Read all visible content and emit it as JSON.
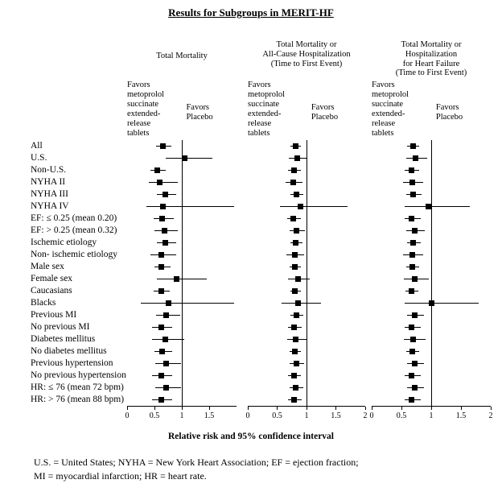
{
  "footnote": "U.S. = United States; NYHA = New York Heart Association; EF = ejection fraction;\nMI = myocardial infarction; HR = heart rate.",
  "chart_data": {
    "type": "forest",
    "title": "Results for Subgroups in MERIT-HF",
    "xlabel": "Relative risk and 95% confidence interval",
    "xlim": [
      0,
      2
    ],
    "reference_line": 1,
    "marker_color": "#000000",
    "grid": false,
    "categories": [
      "All",
      "U.S.",
      "Non-U.S.",
      "NYHA II",
      "NYHA III",
      "NYHA IV",
      "EF: ≤ 0.25 (mean 0.20)",
      "EF: > 0.25 (mean 0.32)",
      "Ischemic etiology",
      "Non- ischemic etiology",
      "Male sex",
      "Female sex",
      "Caucasians",
      "Blacks",
      "Previous MI",
      "No previous MI",
      "Diabetes mellitus",
      "No diabetes mellitus",
      "Previous hypertension",
      "No previous hypertension",
      "HR: ≤ 76 (mean 72 bpm)",
      "HR: > 76 (mean 88 bpm)"
    ],
    "panels": [
      {
        "title": "Total Mortality",
        "favors_left": "Favors\nmetoprolol\nsuccinate\nextended-\nrelease\ntablets",
        "favors_right": "Favors\nPlacebo",
        "xticks": [
          0,
          0.5,
          1,
          1.5
        ],
        "points": [
          {
            "est": 0.66,
            "lo": 0.53,
            "hi": 0.81
          },
          {
            "est": 1.05,
            "lo": 0.71,
            "hi": 1.56
          },
          {
            "est": 0.55,
            "lo": 0.43,
            "hi": 0.7
          },
          {
            "est": 0.6,
            "lo": 0.4,
            "hi": 0.92
          },
          {
            "est": 0.7,
            "lo": 0.55,
            "hi": 0.9
          },
          {
            "est": 0.65,
            "lo": 0.35,
            "hi": 1.95
          },
          {
            "est": 0.64,
            "lo": 0.48,
            "hi": 0.85
          },
          {
            "est": 0.68,
            "lo": 0.5,
            "hi": 0.92
          },
          {
            "est": 0.7,
            "lo": 0.54,
            "hi": 0.9
          },
          {
            "est": 0.62,
            "lo": 0.42,
            "hi": 0.9
          },
          {
            "est": 0.63,
            "lo": 0.5,
            "hi": 0.8
          },
          {
            "est": 0.9,
            "lo": 0.55,
            "hi": 1.45
          },
          {
            "est": 0.62,
            "lo": 0.49,
            "hi": 0.78
          },
          {
            "est": 0.75,
            "lo": 0.25,
            "hi": 1.95
          },
          {
            "est": 0.72,
            "lo": 0.53,
            "hi": 0.97
          },
          {
            "est": 0.62,
            "lo": 0.46,
            "hi": 0.83
          },
          {
            "est": 0.7,
            "lo": 0.46,
            "hi": 1.05
          },
          {
            "est": 0.64,
            "lo": 0.5,
            "hi": 0.83
          },
          {
            "est": 0.72,
            "lo": 0.52,
            "hi": 0.99
          },
          {
            "est": 0.62,
            "lo": 0.46,
            "hi": 0.82
          },
          {
            "est": 0.72,
            "lo": 0.52,
            "hi": 0.98
          },
          {
            "est": 0.62,
            "lo": 0.46,
            "hi": 0.82
          }
        ]
      },
      {
        "title": "Total Mortality or\nAll-Cause Hospitalization\n(Time to First Event)",
        "favors_left": "Favors\nmetoprolol\nsuccinate\nextended-\nrelease\ntablets",
        "favors_right": "Favors\nPlacebo",
        "xticks": [
          0,
          0.5,
          1,
          1.5,
          2
        ],
        "points": [
          {
            "est": 0.81,
            "lo": 0.73,
            "hi": 0.9
          },
          {
            "est": 0.84,
            "lo": 0.7,
            "hi": 1.0
          },
          {
            "est": 0.79,
            "lo": 0.69,
            "hi": 0.9
          },
          {
            "est": 0.78,
            "lo": 0.65,
            "hi": 0.93
          },
          {
            "est": 0.83,
            "lo": 0.72,
            "hi": 0.95
          },
          {
            "est": 0.9,
            "lo": 0.55,
            "hi": 1.7
          },
          {
            "est": 0.78,
            "lo": 0.67,
            "hi": 0.9
          },
          {
            "est": 0.83,
            "lo": 0.71,
            "hi": 0.97
          },
          {
            "est": 0.82,
            "lo": 0.72,
            "hi": 0.93
          },
          {
            "est": 0.8,
            "lo": 0.66,
            "hi": 0.96
          },
          {
            "est": 0.8,
            "lo": 0.71,
            "hi": 0.9
          },
          {
            "est": 0.85,
            "lo": 0.69,
            "hi": 1.05
          },
          {
            "est": 0.8,
            "lo": 0.72,
            "hi": 0.9
          },
          {
            "est": 0.85,
            "lo": 0.58,
            "hi": 1.25
          },
          {
            "est": 0.83,
            "lo": 0.72,
            "hi": 0.95
          },
          {
            "est": 0.79,
            "lo": 0.68,
            "hi": 0.92
          },
          {
            "est": 0.82,
            "lo": 0.67,
            "hi": 1.0
          },
          {
            "est": 0.8,
            "lo": 0.71,
            "hi": 0.91
          },
          {
            "est": 0.83,
            "lo": 0.71,
            "hi": 0.96
          },
          {
            "est": 0.79,
            "lo": 0.68,
            "hi": 0.91
          },
          {
            "est": 0.82,
            "lo": 0.71,
            "hi": 0.95
          },
          {
            "est": 0.79,
            "lo": 0.68,
            "hi": 0.92
          }
        ]
      },
      {
        "title": "Total Mortality or\nHospitalization\nfor Heart Failure\n(Time to First Event)",
        "favors_left": "Favors\nmetoprolol\nsuccinate\nextended-\nrelease\ntablets",
        "favors_right": "Favors\nPlacebo",
        "xticks": [
          0,
          0.5,
          1,
          1.5,
          2
        ],
        "points": [
          {
            "est": 0.69,
            "lo": 0.6,
            "hi": 0.8
          },
          {
            "est": 0.73,
            "lo": 0.58,
            "hi": 0.93
          },
          {
            "est": 0.67,
            "lo": 0.56,
            "hi": 0.8
          },
          {
            "est": 0.68,
            "lo": 0.53,
            "hi": 0.87
          },
          {
            "est": 0.7,
            "lo": 0.58,
            "hi": 0.84
          },
          {
            "est": 0.95,
            "lo": 0.55,
            "hi": 1.65
          },
          {
            "est": 0.67,
            "lo": 0.55,
            "hi": 0.82
          },
          {
            "est": 0.72,
            "lo": 0.58,
            "hi": 0.89
          },
          {
            "est": 0.7,
            "lo": 0.59,
            "hi": 0.83
          },
          {
            "est": 0.68,
            "lo": 0.53,
            "hi": 0.87
          },
          {
            "est": 0.68,
            "lo": 0.58,
            "hi": 0.8
          },
          {
            "est": 0.72,
            "lo": 0.54,
            "hi": 0.96
          },
          {
            "est": 0.67,
            "lo": 0.57,
            "hi": 0.79
          },
          {
            "est": 1.0,
            "lo": 0.55,
            "hi": 1.8
          },
          {
            "est": 0.72,
            "lo": 0.59,
            "hi": 0.88
          },
          {
            "est": 0.67,
            "lo": 0.55,
            "hi": 0.82
          },
          {
            "est": 0.7,
            "lo": 0.54,
            "hi": 0.9
          },
          {
            "est": 0.68,
            "lo": 0.58,
            "hi": 0.8
          },
          {
            "est": 0.72,
            "lo": 0.59,
            "hi": 0.88
          },
          {
            "est": 0.67,
            "lo": 0.55,
            "hi": 0.82
          },
          {
            "est": 0.72,
            "lo": 0.59,
            "hi": 0.88
          },
          {
            "est": 0.67,
            "lo": 0.55,
            "hi": 0.82
          }
        ]
      }
    ]
  }
}
